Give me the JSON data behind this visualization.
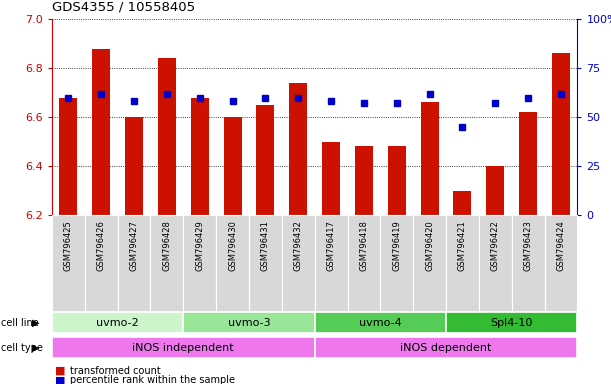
{
  "title": "GDS4355 / 10558405",
  "samples": [
    "GSM796425",
    "GSM796426",
    "GSM796427",
    "GSM796428",
    "GSM796429",
    "GSM796430",
    "GSM796431",
    "GSM796432",
    "GSM796417",
    "GSM796418",
    "GSM796419",
    "GSM796420",
    "GSM796421",
    "GSM796422",
    "GSM796423",
    "GSM796424"
  ],
  "transformed_count": [
    6.68,
    6.88,
    6.6,
    6.84,
    6.68,
    6.6,
    6.65,
    6.74,
    6.5,
    6.48,
    6.48,
    6.66,
    6.3,
    6.4,
    6.62,
    6.86
  ],
  "percentile_vals": [
    60,
    62,
    58,
    62,
    60,
    58,
    60,
    60,
    58,
    57,
    57,
    62,
    45,
    57,
    60,
    62
  ],
  "cell_lines": [
    {
      "label": "uvmo-2",
      "start": 0,
      "end": 3,
      "color": "#ccf5cc"
    },
    {
      "label": "uvmo-3",
      "start": 4,
      "end": 7,
      "color": "#99e699"
    },
    {
      "label": "uvmo-4",
      "start": 8,
      "end": 11,
      "color": "#55cc55"
    },
    {
      "label": "Spl4-10",
      "start": 12,
      "end": 15,
      "color": "#33bb33"
    }
  ],
  "cell_types": [
    {
      "label": "iNOS independent",
      "start": 0,
      "end": 7,
      "color": "#ee77ee"
    },
    {
      "label": "iNOS dependent",
      "start": 8,
      "end": 15,
      "color": "#ee77ee"
    }
  ],
  "ylim_left": [
    6.2,
    7.0
  ],
  "ylim_right": [
    0,
    100
  ],
  "bar_color": "#cc1100",
  "dot_color": "#0000cc",
  "bg_color": "#ffffff",
  "left_axis_color": "#cc0000",
  "right_axis_color": "#0000cc",
  "yticks_left": [
    6.2,
    6.4,
    6.6,
    6.8,
    7.0
  ],
  "yticks_right": [
    0,
    25,
    50,
    75,
    100
  ]
}
